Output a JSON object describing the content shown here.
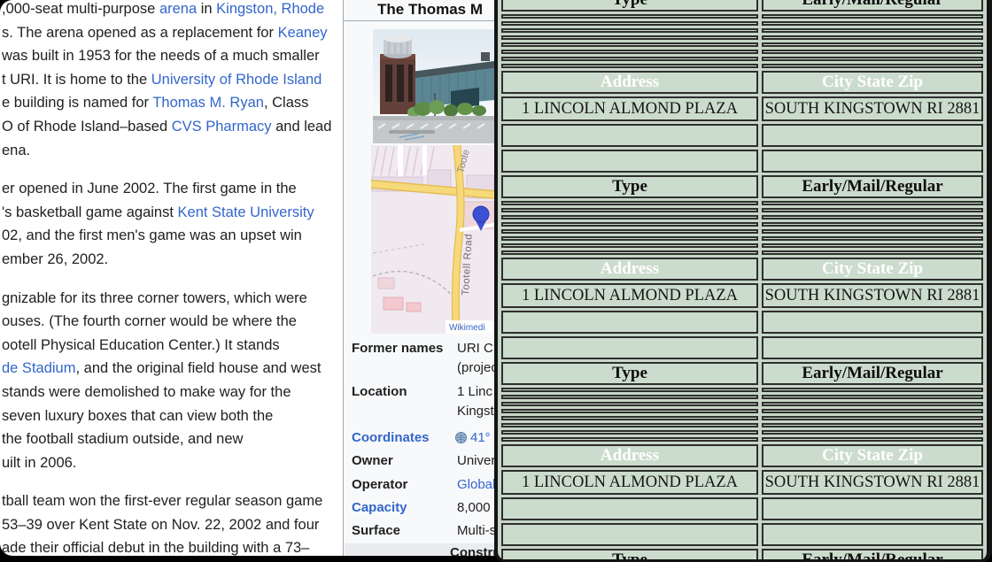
{
  "window_left": {
    "article": {
      "paragraphs": [
        {
          "lines": [
            [
              {
                "t": ",000-seat multi-purpose "
              },
              {
                "t": "arena",
                "link": true
              },
              {
                "t": " in "
              },
              {
                "t": "Kingston, Rhode",
                "link": true
              }
            ],
            [
              {
                "t": "s. The arena opened as a replacement for "
              },
              {
                "t": "Keaney",
                "link": true
              }
            ],
            [
              {
                "t": "was built in 1953 for the needs of a much smaller"
              }
            ],
            [
              {
                "t": "t URI. It is home to the "
              },
              {
                "t": "University of Rhode Island",
                "link": true
              }
            ],
            [
              {
                "t": "e building is named for "
              },
              {
                "t": "Thomas M. Ryan",
                "link": true
              },
              {
                "t": ", Class"
              }
            ],
            [
              {
                "t": "O of Rhode Island–based "
              },
              {
                "t": "CVS Pharmacy",
                "link": true
              },
              {
                "t": " and lead"
              }
            ],
            [
              {
                "t": "ena."
              }
            ]
          ]
        },
        {
          "lines": [
            [
              {
                "t": "er opened in June 2002. The first game in the"
              }
            ],
            [
              {
                "t": "'s basketball game against "
              },
              {
                "t": "Kent State University",
                "link": true
              }
            ],
            [
              {
                "t": "02, and the first men's game was an upset win"
              }
            ],
            [
              {
                "t": "ember 26, 2002."
              }
            ]
          ]
        },
        {
          "lines": [
            [
              {
                "t": "gnizable for its three corner towers, which were"
              }
            ],
            [
              {
                "t": "ouses. (The fourth corner would be where the"
              }
            ],
            [
              {
                "t": "ootell Physical Education Center.) It stands"
              }
            ],
            [
              {
                "t": "de Stadium",
                "link": true
              },
              {
                "t": ", and the original field house and west"
              }
            ],
            [
              {
                "t": "stands were demolished to make way for the"
              }
            ],
            [
              {
                "t": "seven luxury boxes that can view both the"
              }
            ],
            [
              {
                "t": "the football stadium outside, and new"
              }
            ],
            [
              {
                "t": "uilt in 2006."
              }
            ]
          ]
        },
        {
          "lines": [
            [
              {
                "t": "tball team won the first-ever regular season game"
              }
            ],
            [
              {
                "t": "53–39 over Kent State on Nov. 22, 2002 and four"
              }
            ],
            [
              {
                "t": "ade their official debut in the building with a 73–"
              }
            ]
          ]
        }
      ]
    },
    "infobox": {
      "title": "The Thomas M",
      "rows": [
        {
          "label": "Former names",
          "value": "URI C",
          "value2": "(projec"
        },
        {
          "label": "Location",
          "value": "1 Linc",
          "value2": "Kingst"
        },
        {
          "label": "Coordinates",
          "label_link": true,
          "value": "41°",
          "value_link": true,
          "icon": "globe"
        },
        {
          "label": "Owner",
          "value": "Univer"
        },
        {
          "label": "Operator",
          "value": "Global",
          "value_link": true
        },
        {
          "label": "Capacity",
          "label_link": true,
          "value": "8,000"
        },
        {
          "label": "Surface",
          "value": "Multi-s"
        }
      ],
      "section_header": "Constru",
      "map": {
        "road_label": "Tootell Road",
        "road_label_top": "Toote",
        "attribution": "Wikimedi"
      }
    }
  },
  "window_right": {
    "table": {
      "address_header": "Address",
      "city_header": "City State Zip",
      "type_header": "Type",
      "early_header": "Early/Mail/Regular",
      "address_value": "1 LINCOLN ALMOND PLAZA",
      "city_value": "SOUTH KINGSTOWN RI 2881",
      "sections": 4,
      "thin_rows_per_section": 8
    }
  },
  "colors": {
    "link_blue": "#3366cc",
    "header_red": "#e8121f",
    "cell_green": "#ccdccc",
    "window_green": "#c7d6c7"
  }
}
